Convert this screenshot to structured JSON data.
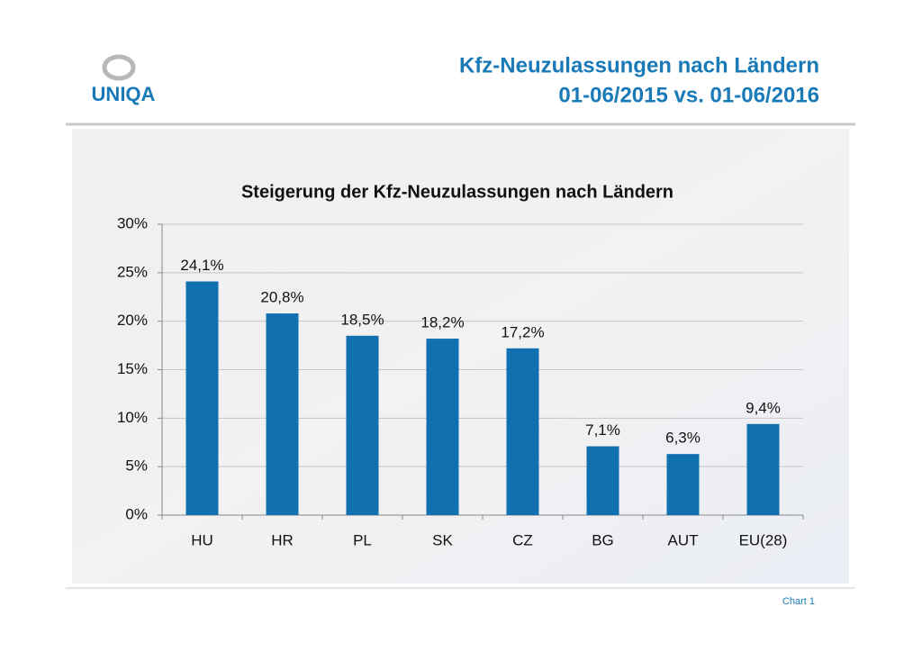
{
  "slide": {
    "logo": "UNIQA",
    "title_lines": [
      "Kfz-Neuzulassungen nach Ländern",
      "01-06/2015 vs. 01-06/2016"
    ],
    "footer": "Chart 1"
  },
  "chart_data": {
    "type": "bar",
    "title": "Steigerung der Kfz-Neuzulassungen nach Ländern",
    "categories": [
      "HU",
      "HR",
      "PL",
      "SK",
      "CZ",
      "BG",
      "AUT",
      "EU(28)"
    ],
    "values": [
      24.1,
      20.8,
      18.5,
      18.2,
      17.2,
      7.1,
      6.3,
      9.4
    ],
    "value_labels": [
      "24,1%",
      "20,8%",
      "18,5%",
      "18,2%",
      "17,2%",
      "7,1%",
      "6,3%",
      "9,4%"
    ],
    "color": "#1170b0",
    "ylim": [
      0,
      30
    ],
    "yticks": [
      {
        "value": 0,
        "label": "0%"
      },
      {
        "value": 5,
        "label": "5%"
      },
      {
        "value": 10,
        "label": "10%"
      },
      {
        "value": 15,
        "label": "15%"
      },
      {
        "value": 20,
        "label": "20%"
      },
      {
        "value": 25,
        "label": "25%"
      },
      {
        "value": 30,
        "label": "30%"
      }
    ],
    "grid": true
  }
}
